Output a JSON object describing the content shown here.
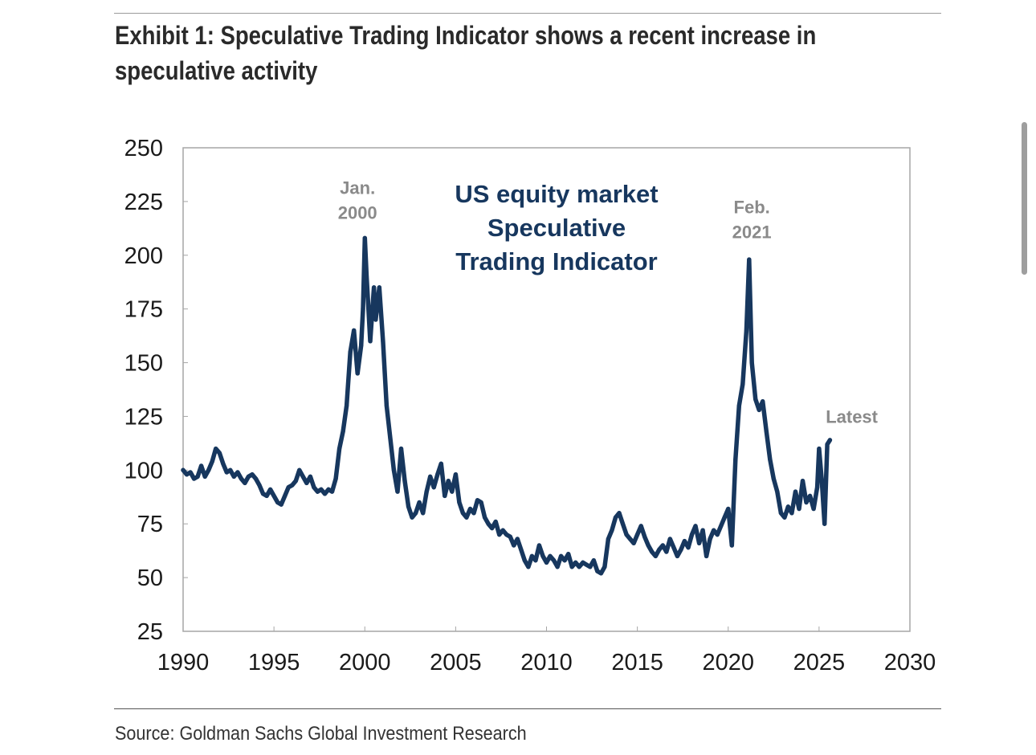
{
  "title": "Exhibit 1: Speculative Trading Indicator shows a recent increase in speculative activity",
  "source": "Source: Goldman Sachs Global Investment Research",
  "colors": {
    "line": "#17375e",
    "annotation": "#8a8a8a",
    "axis": "#a6a6a6"
  },
  "chart_data": {
    "type": "line",
    "title": "",
    "xlabel": "",
    "ylabel": "",
    "xlim": [
      1990,
      2030
    ],
    "ylim": [
      25,
      250
    ],
    "grid": false,
    "legend": "none",
    "x_ticks": [
      "1990",
      "1995",
      "2000",
      "2005",
      "2010",
      "2015",
      "2020",
      "2025",
      "2030"
    ],
    "y_ticks": [
      "250",
      "225",
      "200",
      "175",
      "150",
      "125",
      "100",
      "75",
      "50",
      "25"
    ],
    "series_label_lines": [
      "US equity market",
      "Speculative",
      "Trading Indicator"
    ],
    "annotations": [
      {
        "lines": [
          "Jan.",
          "2000"
        ],
        "x": 1999.6,
        "y": 217
      },
      {
        "lines": [
          "Feb.",
          "2021"
        ],
        "x": 2021.3,
        "y": 208
      },
      {
        "lines": [
          "Latest"
        ],
        "x": 2026.8,
        "y": 122
      }
    ],
    "series": [
      {
        "color": "#17375e",
        "points": [
          [
            1990.0,
            100
          ],
          [
            1990.2,
            98
          ],
          [
            1990.4,
            99
          ],
          [
            1990.6,
            96
          ],
          [
            1990.8,
            97
          ],
          [
            1991.0,
            102
          ],
          [
            1991.2,
            97
          ],
          [
            1991.4,
            100
          ],
          [
            1991.6,
            104
          ],
          [
            1991.8,
            110
          ],
          [
            1992.0,
            108
          ],
          [
            1992.2,
            103
          ],
          [
            1992.4,
            99
          ],
          [
            1992.6,
            100
          ],
          [
            1992.8,
            97
          ],
          [
            1993.0,
            99
          ],
          [
            1993.2,
            96
          ],
          [
            1993.4,
            94
          ],
          [
            1993.6,
            97
          ],
          [
            1993.8,
            98
          ],
          [
            1994.0,
            96
          ],
          [
            1994.2,
            93
          ],
          [
            1994.4,
            89
          ],
          [
            1994.6,
            88
          ],
          [
            1994.8,
            91
          ],
          [
            1995.0,
            88
          ],
          [
            1995.2,
            85
          ],
          [
            1995.4,
            84
          ],
          [
            1995.6,
            88
          ],
          [
            1995.8,
            92
          ],
          [
            1996.0,
            93
          ],
          [
            1996.2,
            95
          ],
          [
            1996.4,
            100
          ],
          [
            1996.6,
            97
          ],
          [
            1996.8,
            94
          ],
          [
            1997.0,
            97
          ],
          [
            1997.2,
            92
          ],
          [
            1997.4,
            90
          ],
          [
            1997.6,
            91
          ],
          [
            1997.8,
            89
          ],
          [
            1998.0,
            91
          ],
          [
            1998.2,
            90
          ],
          [
            1998.4,
            96
          ],
          [
            1998.6,
            110
          ],
          [
            1998.8,
            118
          ],
          [
            1999.0,
            130
          ],
          [
            1999.2,
            155
          ],
          [
            1999.4,
            165
          ],
          [
            1999.6,
            145
          ],
          [
            1999.8,
            158
          ],
          [
            1999.9,
            175
          ],
          [
            2000.0,
            208
          ],
          [
            2000.1,
            190
          ],
          [
            2000.2,
            175
          ],
          [
            2000.3,
            160
          ],
          [
            2000.5,
            185
          ],
          [
            2000.6,
            170
          ],
          [
            2000.8,
            185
          ],
          [
            2001.0,
            160
          ],
          [
            2001.2,
            130
          ],
          [
            2001.4,
            115
          ],
          [
            2001.6,
            100
          ],
          [
            2001.8,
            90
          ],
          [
            2002.0,
            110
          ],
          [
            2002.2,
            95
          ],
          [
            2002.4,
            83
          ],
          [
            2002.6,
            78
          ],
          [
            2002.8,
            80
          ],
          [
            2003.0,
            85
          ],
          [
            2003.2,
            80
          ],
          [
            2003.4,
            90
          ],
          [
            2003.6,
            97
          ],
          [
            2003.8,
            92
          ],
          [
            2004.0,
            98
          ],
          [
            2004.2,
            103
          ],
          [
            2004.4,
            88
          ],
          [
            2004.6,
            95
          ],
          [
            2004.8,
            90
          ],
          [
            2005.0,
            98
          ],
          [
            2005.2,
            85
          ],
          [
            2005.4,
            80
          ],
          [
            2005.6,
            78
          ],
          [
            2005.8,
            82
          ],
          [
            2006.0,
            80
          ],
          [
            2006.2,
            86
          ],
          [
            2006.4,
            85
          ],
          [
            2006.6,
            78
          ],
          [
            2006.8,
            75
          ],
          [
            2007.0,
            73
          ],
          [
            2007.2,
            76
          ],
          [
            2007.4,
            70
          ],
          [
            2007.6,
            72
          ],
          [
            2007.8,
            70
          ],
          [
            2008.0,
            69
          ],
          [
            2008.2,
            65
          ],
          [
            2008.4,
            68
          ],
          [
            2008.6,
            63
          ],
          [
            2008.8,
            58
          ],
          [
            2009.0,
            55
          ],
          [
            2009.2,
            60
          ],
          [
            2009.4,
            58
          ],
          [
            2009.6,
            65
          ],
          [
            2009.8,
            60
          ],
          [
            2010.0,
            57
          ],
          [
            2010.2,
            60
          ],
          [
            2010.4,
            58
          ],
          [
            2010.6,
            55
          ],
          [
            2010.8,
            60
          ],
          [
            2011.0,
            58
          ],
          [
            2011.2,
            61
          ],
          [
            2011.4,
            55
          ],
          [
            2011.6,
            57
          ],
          [
            2011.8,
            55
          ],
          [
            2012.0,
            57
          ],
          [
            2012.2,
            56
          ],
          [
            2012.4,
            55
          ],
          [
            2012.6,
            58
          ],
          [
            2012.8,
            53
          ],
          [
            2013.0,
            52
          ],
          [
            2013.2,
            55
          ],
          [
            2013.4,
            68
          ],
          [
            2013.6,
            72
          ],
          [
            2013.8,
            78
          ],
          [
            2014.0,
            80
          ],
          [
            2014.2,
            75
          ],
          [
            2014.4,
            70
          ],
          [
            2014.6,
            68
          ],
          [
            2014.8,
            66
          ],
          [
            2015.0,
            70
          ],
          [
            2015.2,
            74
          ],
          [
            2015.4,
            69
          ],
          [
            2015.6,
            65
          ],
          [
            2015.8,
            62
          ],
          [
            2016.0,
            60
          ],
          [
            2016.2,
            63
          ],
          [
            2016.4,
            65
          ],
          [
            2016.6,
            62
          ],
          [
            2016.8,
            68
          ],
          [
            2017.0,
            64
          ],
          [
            2017.2,
            60
          ],
          [
            2017.4,
            63
          ],
          [
            2017.6,
            67
          ],
          [
            2017.8,
            64
          ],
          [
            2018.0,
            70
          ],
          [
            2018.2,
            74
          ],
          [
            2018.4,
            66
          ],
          [
            2018.6,
            72
          ],
          [
            2018.8,
            60
          ],
          [
            2019.0,
            68
          ],
          [
            2019.2,
            72
          ],
          [
            2019.4,
            70
          ],
          [
            2019.6,
            74
          ],
          [
            2019.8,
            78
          ],
          [
            2020.0,
            82
          ],
          [
            2020.2,
            65
          ],
          [
            2020.4,
            105
          ],
          [
            2020.6,
            130
          ],
          [
            2020.8,
            140
          ],
          [
            2021.0,
            165
          ],
          [
            2021.15,
            198
          ],
          [
            2021.3,
            150
          ],
          [
            2021.5,
            133
          ],
          [
            2021.7,
            128
          ],
          [
            2021.9,
            132
          ],
          [
            2022.1,
            118
          ],
          [
            2022.3,
            105
          ],
          [
            2022.5,
            96
          ],
          [
            2022.7,
            90
          ],
          [
            2022.9,
            80
          ],
          [
            2023.1,
            78
          ],
          [
            2023.3,
            83
          ],
          [
            2023.5,
            80
          ],
          [
            2023.7,
            90
          ],
          [
            2023.9,
            82
          ],
          [
            2024.1,
            95
          ],
          [
            2024.3,
            85
          ],
          [
            2024.5,
            88
          ],
          [
            2024.7,
            82
          ],
          [
            2024.9,
            92
          ],
          [
            2025.0,
            110
          ],
          [
            2025.15,
            95
          ],
          [
            2025.3,
            75
          ],
          [
            2025.45,
            112
          ],
          [
            2025.6,
            114
          ]
        ]
      }
    ]
  }
}
